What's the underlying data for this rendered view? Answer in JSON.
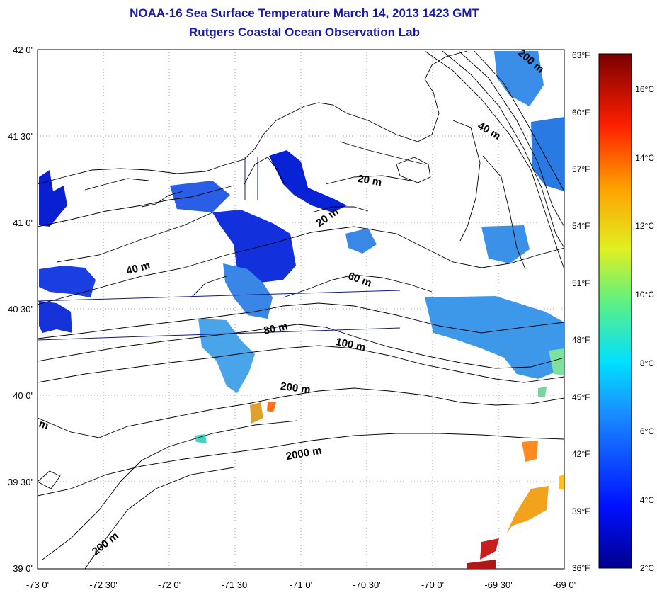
{
  "header": {
    "title": "NOAA-16 Sea Surface Temperature March 14, 2013 1423 GMT",
    "subtitle": "Rutgers Coastal Ocean Observation Lab"
  },
  "map": {
    "lat_ticks": [
      "42 0'",
      "41 30'",
      "41 0'",
      "40 30'",
      "40 0'",
      "39 30'",
      "39 0'"
    ],
    "lon_ticks": [
      "-73 0'",
      "-72 30'",
      "-72 0'",
      "-71 30'",
      "-71 0'",
      "-70 30'",
      "-70 0'",
      "-69 30'",
      "-69 0'"
    ],
    "contour_labels": [
      "200 m",
      "40 m",
      "20 m",
      "20 m",
      "40 m",
      "60 m",
      "80 m",
      "100 m",
      "200 m",
      "2000 m",
      "200 m",
      "m"
    ]
  },
  "colorbar": {
    "fahrenheit_labels": [
      "63°F",
      "60°F",
      "57°F",
      "54°F",
      "51°F",
      "48°F",
      "45°F",
      "42°F",
      "39°F",
      "36°F"
    ],
    "celsius_labels": [
      "16°C",
      "14°C",
      "12°C",
      "10°C",
      "8°C",
      "6°C",
      "4°C",
      "2°C"
    ]
  },
  "colors": {
    "title": "#1a1aa8",
    "cold": "#0a1ed2",
    "mid": "#3aa0e6",
    "warm": "#e8a020",
    "hot": "#c81e1e"
  }
}
